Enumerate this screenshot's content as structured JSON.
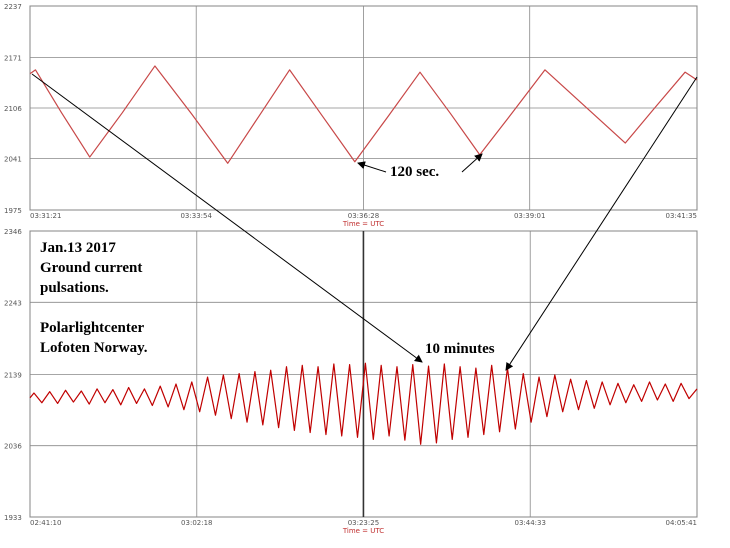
{
  "chart_data": [
    {
      "type": "line",
      "xlabel": "Time = UTC",
      "xlim": [
        12681,
        13295
      ],
      "xticks": [
        {
          "value": 12681,
          "label": "03:31:21"
        },
        {
          "value": 12834,
          "label": "03:33:54"
        },
        {
          "value": 12988,
          "label": "03:36:28"
        },
        {
          "value": 13141,
          "label": "03:39:01"
        },
        {
          "value": 13295,
          "label": "03:41:35"
        }
      ],
      "ylim": [
        1975,
        2237
      ],
      "yticks": [
        1975,
        2041,
        2106,
        2171,
        2237
      ],
      "grid": true,
      "annotations": [
        "120 sec."
      ],
      "x": [
        12681,
        12686,
        12710,
        12736,
        12766,
        12796,
        12830,
        12863,
        12892,
        12920,
        12950,
        12980,
        13010,
        13040,
        13068,
        13095,
        13125,
        13155,
        13192,
        13229,
        13256,
        13284,
        13295
      ],
      "series": [
        {
          "color": "#c84848",
          "values": [
            2150,
            2155,
            2100,
            2043,
            2100,
            2160,
            2098,
            2035,
            2096,
            2155,
            2096,
            2037,
            2094,
            2152,
            2099,
            2046,
            2100,
            2155,
            2108,
            2061,
            2106,
            2152,
            2142
          ]
        }
      ]
    },
    {
      "type": "line",
      "xlabel": "Time = UTC",
      "xlim": [
        9670,
        14741
      ],
      "xticks": [
        {
          "value": 9670,
          "label": "02:41:10"
        },
        {
          "value": 10938,
          "label": "03:02:18"
        },
        {
          "value": 12205,
          "label": "03:23:25"
        },
        {
          "value": 13473,
          "label": "03:44:33"
        },
        {
          "value": 14741,
          "label": "04:05:41"
        }
      ],
      "ylim": [
        1933,
        2346
      ],
      "yticks": [
        1933,
        2036,
        2139,
        2243,
        2346
      ],
      "grid": true,
      "annotations": [
        "Jan.13 2017",
        "Ground current",
        "pulsations.",
        "Polarlightcenter",
        "Lofoten Norway.",
        "10 minutes"
      ],
      "x": [
        9670,
        9700,
        9760,
        9820,
        9880,
        9940,
        10000,
        10060,
        10120,
        10180,
        10240,
        10300,
        10360,
        10420,
        10480,
        10540,
        10600,
        10660,
        10720,
        10780,
        10840,
        10900,
        10960,
        11020,
        11080,
        11140,
        11200,
        11260,
        11320,
        11380,
        11440,
        11500,
        11560,
        11620,
        11680,
        11740,
        11800,
        11860,
        11920,
        11980,
        12040,
        12100,
        12160,
        12220,
        12280,
        12340,
        12400,
        12460,
        12520,
        12580,
        12640,
        12700,
        12760,
        12820,
        12880,
        12940,
        13000,
        13060,
        13120,
        13180,
        13240,
        13300,
        13360,
        13420,
        13480,
        13540,
        13600,
        13660,
        13720,
        13780,
        13840,
        13900,
        13960,
        14020,
        14080,
        14140,
        14200,
        14260,
        14320,
        14380,
        14440,
        14500,
        14560,
        14620,
        14680,
        14741
      ],
      "series": [
        {
          "color": "#c00000",
          "values": [
            2105,
            2112,
            2098,
            2114,
            2097,
            2116,
            2099,
            2115,
            2096,
            2118,
            2098,
            2117,
            2095,
            2120,
            2097,
            2118,
            2094,
            2122,
            2092,
            2125,
            2088,
            2128,
            2085,
            2135,
            2080,
            2138,
            2075,
            2140,
            2070,
            2143,
            2066,
            2145,
            2062,
            2150,
            2058,
            2152,
            2055,
            2150,
            2052,
            2154,
            2050,
            2153,
            2048,
            2155,
            2045,
            2152,
            2050,
            2150,
            2044,
            2153,
            2038,
            2151,
            2040,
            2154,
            2045,
            2150,
            2048,
            2148,
            2052,
            2152,
            2056,
            2148,
            2060,
            2140,
            2070,
            2135,
            2078,
            2138,
            2085,
            2132,
            2088,
            2130,
            2090,
            2128,
            2095,
            2126,
            2098,
            2124,
            2100,
            2128,
            2102,
            2125,
            2100,
            2126,
            2104,
            2118
          ]
        }
      ]
    }
  ]
}
